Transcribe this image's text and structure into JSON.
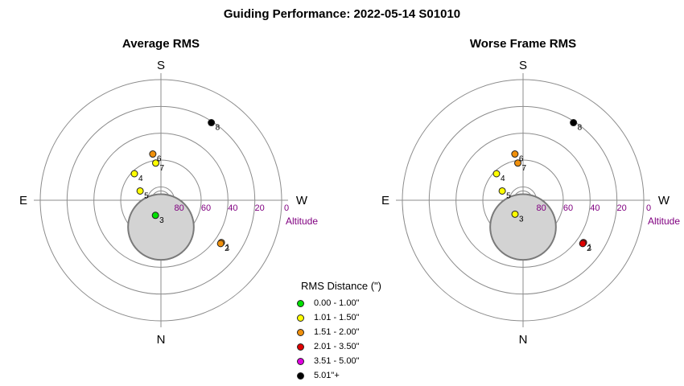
{
  "title": "Guiding Performance: 2022-05-14 S01010",
  "colors": {
    "ring": "#8c8c8c",
    "axis": "#8c8c8c",
    "altitude_label": "#800080",
    "obstruction_fill": "#d3d3d3",
    "obstruction_stroke": "#7a7a7a"
  },
  "legend": {
    "title": "RMS Distance (\")",
    "items": [
      {
        "label": "0.00 - 1.00\"",
        "color": "#00e000"
      },
      {
        "label": "1.01 - 1.50\"",
        "color": "#ffff00"
      },
      {
        "label": "1.51 - 2.00\"",
        "color": "#f0900c"
      },
      {
        "label": "2.01 - 3.50\"",
        "color": "#e00000"
      },
      {
        "label": "3.51 - 5.00\"",
        "color": "#e000e0"
      },
      {
        "label": "5.01\"+",
        "color": "#000000"
      }
    ]
  },
  "chart_data": [
    {
      "type": "scatter",
      "projection": "polar-altaz",
      "title": "Average RMS",
      "compass": {
        "top": "S",
        "bottom": "N",
        "left": "E",
        "right": "W"
      },
      "altitude_rings": [
        80,
        60,
        40,
        20,
        0
      ],
      "altitude_tick_labels": [
        "80",
        "60",
        "40",
        "20",
        "0"
      ],
      "altitude_label": "Altitude",
      "obstruction": {
        "azimuth_deg": 0,
        "altitude_deg": 70,
        "radius_deg": 24.5
      },
      "points": [
        {
          "label": "1",
          "azimuth_deg": 55,
          "altitude_deg": 35,
          "color": "#f0900c"
        },
        {
          "label": "2",
          "azimuth_deg": 54,
          "altitude_deg": 35,
          "color": "#f0900c"
        },
        {
          "label": "3",
          "azimuth_deg": 340,
          "altitude_deg": 78,
          "color": "#00e000"
        },
        {
          "label": "4",
          "azimuth_deg": 225,
          "altitude_deg": 62,
          "color": "#ffff00"
        },
        {
          "label": "5",
          "azimuth_deg": 246,
          "altitude_deg": 73,
          "color": "#ffff00"
        },
        {
          "label": "6",
          "azimuth_deg": 190,
          "altitude_deg": 55,
          "color": "#f0900c"
        },
        {
          "label": "7",
          "azimuth_deg": 188,
          "altitude_deg": 62,
          "color": "#ffff00"
        },
        {
          "label": "8",
          "azimuth_deg": 147,
          "altitude_deg": 21,
          "color": "#000000"
        }
      ]
    },
    {
      "type": "scatter",
      "projection": "polar-altaz",
      "title": "Worse Frame RMS",
      "compass": {
        "top": "S",
        "bottom": "N",
        "left": "E",
        "right": "W"
      },
      "altitude_rings": [
        80,
        60,
        40,
        20,
        0
      ],
      "altitude_tick_labels": [
        "80",
        "60",
        "40",
        "20",
        "0"
      ],
      "altitude_label": "Altitude",
      "obstruction": {
        "azimuth_deg": 0,
        "altitude_deg": 70,
        "radius_deg": 24.5
      },
      "points": [
        {
          "label": "1",
          "azimuth_deg": 55,
          "altitude_deg": 35,
          "color": "#e00000"
        },
        {
          "label": "2",
          "azimuth_deg": 54,
          "altitude_deg": 35,
          "color": "#e00000"
        },
        {
          "label": "3",
          "azimuth_deg": 330,
          "altitude_deg": 78,
          "color": "#ffff00"
        },
        {
          "label": "4",
          "azimuth_deg": 225,
          "altitude_deg": 62,
          "color": "#ffff00"
        },
        {
          "label": "5",
          "azimuth_deg": 246,
          "altitude_deg": 73,
          "color": "#ffff00"
        },
        {
          "label": "6",
          "azimuth_deg": 190,
          "altitude_deg": 55,
          "color": "#f0900c"
        },
        {
          "label": "7",
          "azimuth_deg": 188,
          "altitude_deg": 62,
          "color": "#f0900c"
        },
        {
          "label": "8",
          "azimuth_deg": 147,
          "altitude_deg": 21,
          "color": "#000000"
        }
      ]
    }
  ]
}
